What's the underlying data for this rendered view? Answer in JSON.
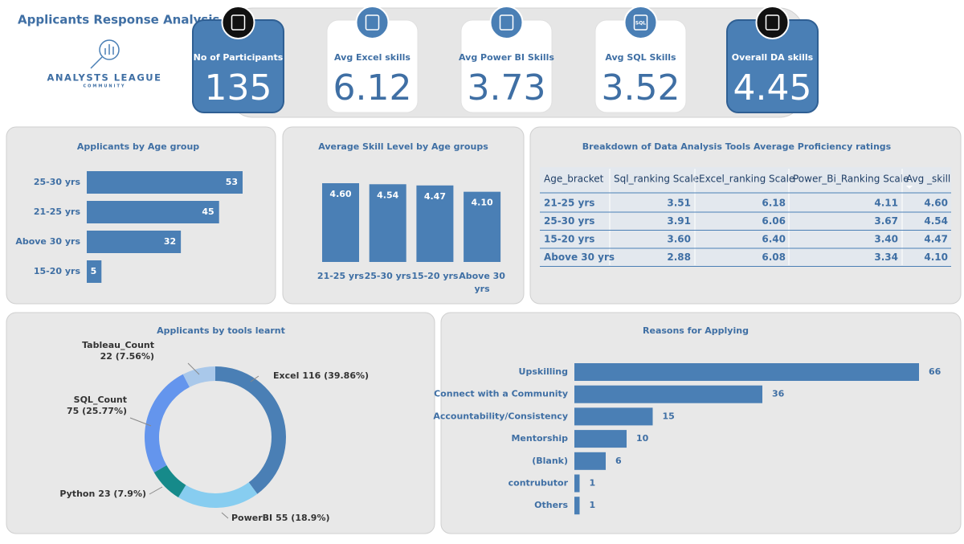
{
  "header": {
    "title": "Applicants  Response Analysis",
    "logo_name": "ANALYSTS LEAGUE",
    "logo_tagline": "COMMUNITY"
  },
  "kpis": [
    {
      "label": "No of Participants",
      "value": 135
    },
    {
      "label": "Avg Excel skills",
      "value": 6.12
    },
    {
      "label": "Avg Power BI Skills",
      "value": 3.73
    },
    {
      "label": "Avg SQL Skills",
      "value": 3.52,
      "icon_text": "SQL"
    },
    {
      "label": "Overall DA skills",
      "value": 4.45
    }
  ],
  "table": {
    "title": "Breakdown of Data Analysis Tools Average Proficiency ratings",
    "columns": [
      "Age_bracket",
      "Sql_ranking Scale",
      "Excel_ranking Scale",
      "Power_Bi_Ranking Scale",
      "Avg _skill"
    ],
    "rows": [
      [
        "21-25 yrs",
        "3.51",
        "6.18",
        "4.11",
        "4.60"
      ],
      [
        "25-30 yrs",
        "3.91",
        "6.06",
        "3.67",
        "4.54"
      ],
      [
        "15-20 yrs",
        "3.60",
        "6.40",
        "3.40",
        "4.47"
      ],
      [
        "Above 30 yrs",
        "2.88",
        "6.08",
        "3.34",
        "4.10"
      ]
    ]
  },
  "chart_data": [
    {
      "type": "bar",
      "orientation": "horizontal",
      "title": "Applicants by Age group",
      "categories": [
        "25-30 yrs",
        "21-25 yrs",
        "Above 30 yrs",
        "15-20 yrs"
      ],
      "values": [
        53,
        45,
        32,
        5
      ],
      "color": "#4a7fb5"
    },
    {
      "type": "bar",
      "title": "Average Skill Level by Age groups",
      "categories": [
        "21-25 yrs",
        "25-30 yrs",
        "15-20 yrs",
        "Above 30 yrs"
      ],
      "values": [
        4.6,
        4.54,
        4.47,
        4.1
      ],
      "value_labels": [
        "4.60",
        "4.54",
        "4.47",
        "4.10"
      ],
      "color": "#4a7fb5"
    },
    {
      "type": "donut",
      "title": "Applicants by tools learnt",
      "categories": [
        "Excel",
        "PowerBI",
        "Python",
        "SQL_Count",
        "Tableau_Count"
      ],
      "values": [
        116,
        55,
        23,
        75,
        22
      ],
      "value_labels": [
        "116 (39.86%)",
        "55 (18.9%)",
        "23 (7.9%)",
        "75 (25.77%)",
        "22 (7.56%)"
      ],
      "colors": [
        "#4a7fb5",
        "#87cdf0",
        "#168a8a",
        "#6495ed",
        "#a9c8ea"
      ]
    },
    {
      "type": "bar",
      "orientation": "horizontal",
      "title": "Reasons for Applying",
      "categories": [
        "Upskilling",
        "Connect with a Community",
        "Accountability/Consistency",
        "Mentorship",
        "(Blank)",
        "contrubutor",
        "Others"
      ],
      "values": [
        66,
        36,
        15,
        10,
        6,
        1,
        1
      ],
      "color": "#4a7fb5"
    }
  ]
}
